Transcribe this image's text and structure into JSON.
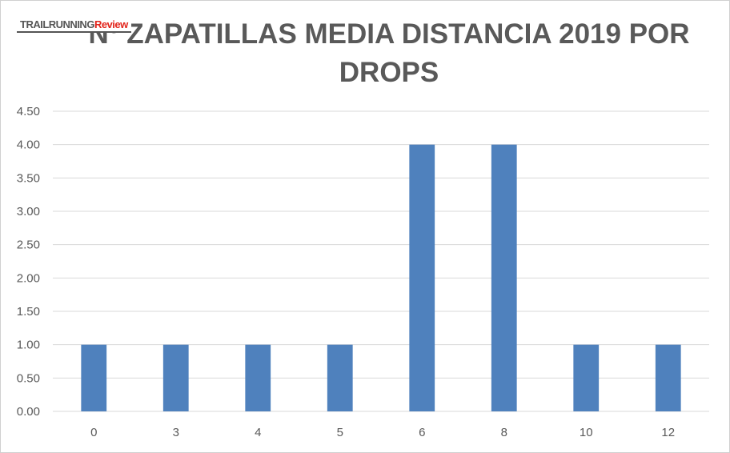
{
  "logo": {
    "part1": "TRAILRUNNING",
    "part2": "Review"
  },
  "chart_data": {
    "type": "bar",
    "title": "Nº ZAPATILLAS MEDIA DISTANCIA 2019 POR DROPS",
    "categories": [
      "0",
      "3",
      "4",
      "5",
      "6",
      "8",
      "10",
      "12"
    ],
    "values": [
      1,
      1,
      1,
      1,
      4,
      4,
      1,
      1
    ],
    "xlabel": "",
    "ylabel": "",
    "ylim": [
      0,
      4.5
    ],
    "yticks": [
      "0.00",
      "0.50",
      "1.00",
      "1.50",
      "2.00",
      "2.50",
      "3.00",
      "3.50",
      "4.00",
      "4.50"
    ],
    "bar_color": "#4f81bd",
    "grid": true,
    "legend": "none"
  }
}
